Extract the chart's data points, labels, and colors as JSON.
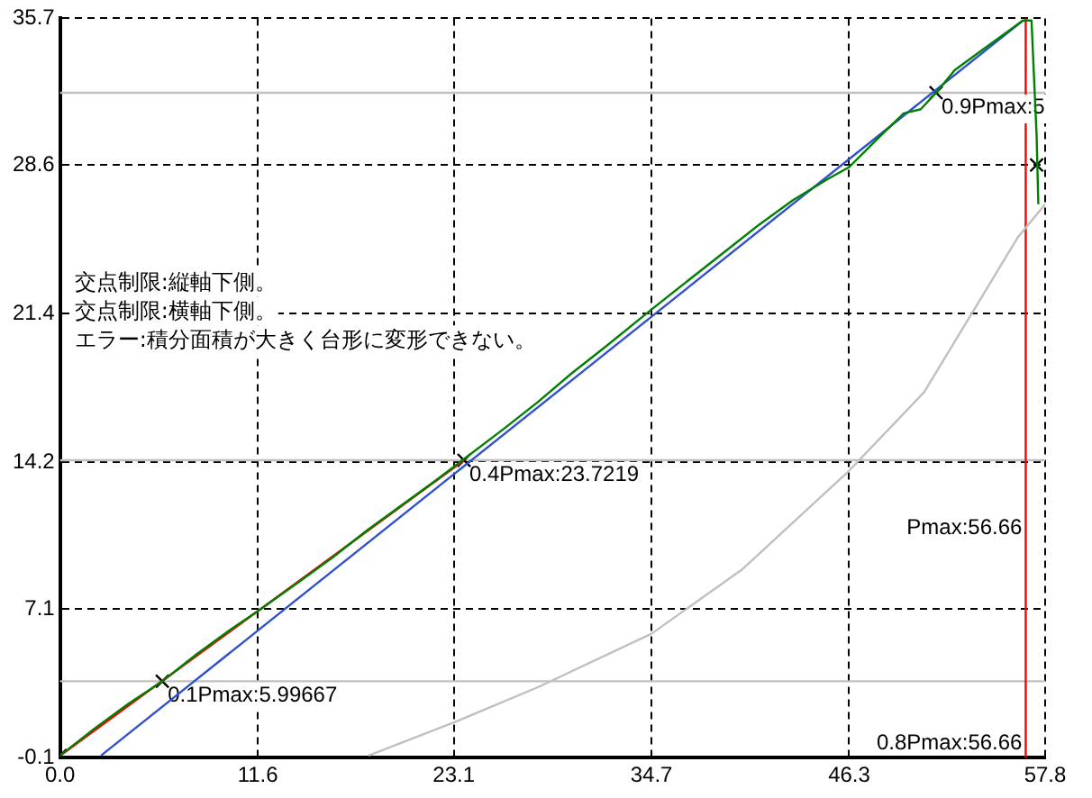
{
  "chart_data": {
    "type": "line",
    "xlim": [
      0,
      57.8
    ],
    "ylim": [
      -0.1,
      35.7
    ],
    "xticks": [
      {
        "value": 0,
        "label": "0.0"
      },
      11.6,
      23.1,
      34.7,
      46.3,
      57.8
    ],
    "yticks": [
      -0.1,
      7.1,
      14.2,
      21.4,
      28.6,
      35.7
    ],
    "grid": true,
    "legend": false,
    "line_style": "solid",
    "series": [
      {
        "color": "#008000",
        "x": [
          0,
          2,
          4,
          6,
          8,
          10,
          11.6,
          14,
          16,
          18,
          20,
          22,
          23.6,
          26,
          28,
          30,
          32,
          34.7,
          37,
          39,
          41,
          43,
          45,
          46.3,
          48,
          49.5,
          50.5,
          51.4,
          52.5,
          54,
          55.5,
          56.5,
          57.0,
          57.3,
          57.4
        ],
        "values": [
          0,
          1.3,
          2.5,
          3.6,
          4.9,
          6.1,
          7.0,
          8.4,
          9.6,
          10.9,
          12.1,
          13.3,
          14.3,
          15.8,
          17.1,
          18.5,
          19.8,
          21.6,
          23.1,
          24.4,
          25.7,
          26.9,
          27.9,
          28.5,
          29.9,
          31.1,
          31.3,
          32.1,
          33.2,
          34.1,
          35.0,
          35.6,
          35.6,
          30,
          26.7
        ]
      },
      {
        "color": "#3050d0",
        "x": [
          2.4,
          56.5
        ],
        "values": [
          0,
          35.6
        ]
      },
      {
        "color": "#ff0000",
        "x": [
          0,
          23.7
        ],
        "values": [
          0,
          14.3
        ]
      },
      {
        "color": "#c0c0c0",
        "x": [
          18.1,
          23.1,
          28,
          34.7,
          40,
          46.3,
          50.7,
          52.9,
          56.2,
          57.8
        ],
        "values": [
          0,
          1.6,
          3.3,
          5.9,
          9.0,
          13.8,
          17.6,
          20.6,
          25.1,
          26.7
        ]
      },
      {
        "type": "scatter",
        "marker": "cross",
        "color": "#000000",
        "x": [
          0,
          5.99667,
          23.7,
          51.4,
          57.3
        ],
        "values": [
          0,
          3.6,
          14.3,
          32.1,
          28.6
        ]
      }
    ],
    "ref_lines": [
      {
        "axis": "y",
        "value": 3.6,
        "color": "#c0c0c0"
      },
      {
        "axis": "y",
        "value": 14.3,
        "color": "#c0c0c0"
      },
      {
        "axis": "y",
        "value": 32.1,
        "color": "#c0c0c0"
      },
      {
        "axis": "x",
        "value": 56.66,
        "color": "#ff0000",
        "label": "Pmax:56.66"
      }
    ],
    "annotations": [
      {
        "text": "0.1Pmax:5.99667",
        "x": 5.99667,
        "y": 3.6
      },
      {
        "text": "0.4Pmax:23.7219",
        "x": 23.7,
        "y": 14.3
      },
      {
        "text": "0.9Pmax:5",
        "x": 51.4,
        "y": 32.1
      },
      {
        "text": "0.8Pmax:56.66",
        "x": 56.66,
        "y": -0.1
      },
      "交点制限:縦軸下側。",
      "交点制限:横軸下側。",
      "エラー:積分面積が大きく台形に変形できない。"
    ]
  }
}
